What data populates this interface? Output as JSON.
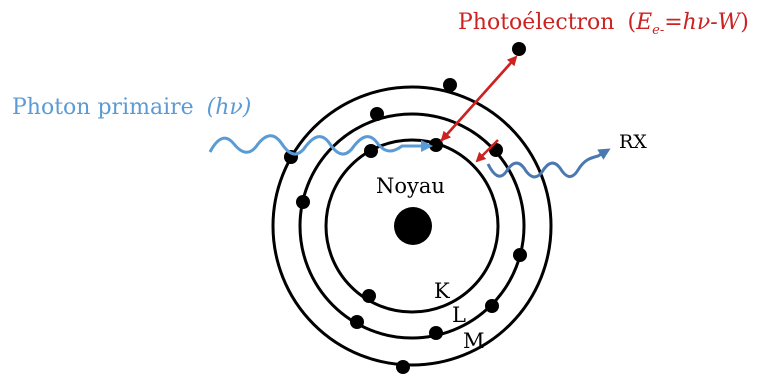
{
  "labels": {
    "photoelectron": "Photoélectron",
    "photoelectron_eq_open": "(",
    "photoelectron_eq_E": "E",
    "photoelectron_eq_sub": "e-",
    "photoelectron_eq_rest": "=hν-",
    "photoelectron_eq_W": "W",
    "photoelectron_eq_close": ")",
    "photon": "Photon primaire",
    "photon_eq": "(hν)",
    "rx": "RX",
    "nucleus": "Noyau",
    "shell_k": "K",
    "shell_l": "L",
    "shell_m": "M"
  },
  "colors": {
    "photoelectron": "#cc2222",
    "photon": "#5b9bd5",
    "rx_wave": "#4a78b0",
    "structure": "#000000"
  }
}
